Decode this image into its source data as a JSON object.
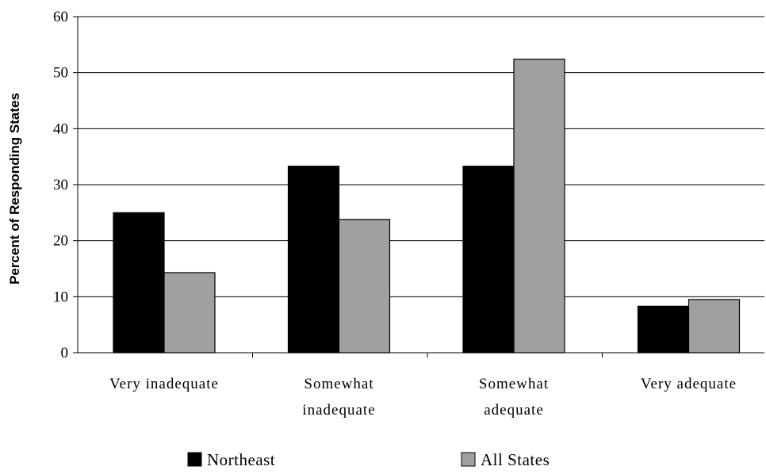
{
  "chart_data": {
    "type": "bar",
    "categories": [
      [
        "Very inadequate"
      ],
      [
        "Somewhat",
        "inadequate"
      ],
      [
        "Somewhat",
        "adequate"
      ],
      [
        "Very adequate"
      ]
    ],
    "series": [
      {
        "name": "Northeast",
        "values": [
          25.0,
          33.3,
          33.3,
          8.3
        ],
        "color": "#000000"
      },
      {
        "name": "All States",
        "values": [
          14.3,
          23.8,
          52.4,
          9.5
        ],
        "color": "#a0a0a0"
      }
    ],
    "title": "",
    "xlabel": "",
    "ylabel": "Percent of Responding States",
    "ylim": [
      0,
      60
    ],
    "yticks": [
      0,
      10,
      20,
      30,
      40,
      50,
      60
    ],
    "grid": true,
    "legend_position": "bottom"
  }
}
